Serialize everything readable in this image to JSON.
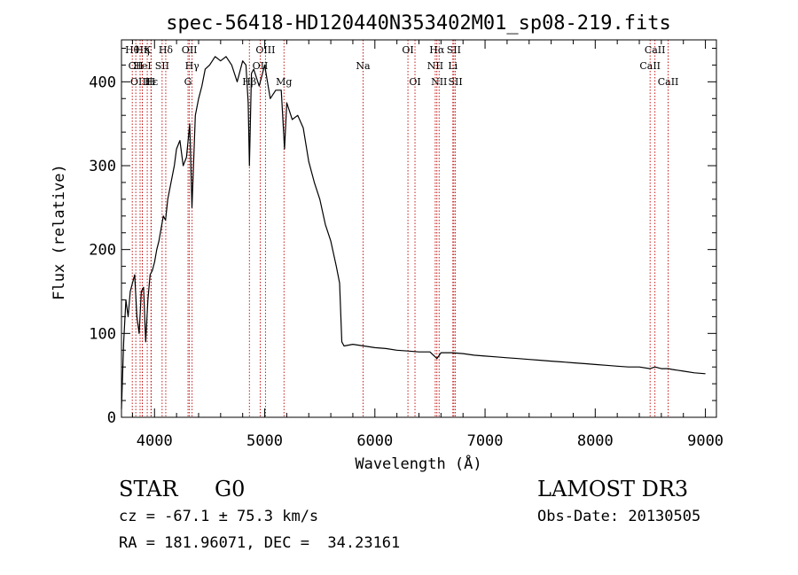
{
  "chart_data": {
    "type": "line",
    "title": "spec-56418-HD120440N353402M01_sp08-219.fits",
    "xlabel": "Wavelength (Å)",
    "ylabel": "Flux (relative)",
    "xlim": [
      3700,
      9100
    ],
    "ylim": [
      0,
      450
    ],
    "xticks": [
      4000,
      5000,
      6000,
      7000,
      8000,
      9000
    ],
    "yticks": [
      0,
      100,
      200,
      300,
      400
    ],
    "line_color": "#000000",
    "marker_color": "#c00000",
    "series": [
      {
        "name": "flux",
        "x": [
          3700,
          3720,
          3740,
          3760,
          3780,
          3800,
          3820,
          3840,
          3860,
          3880,
          3900,
          3920,
          3940,
          3960,
          3980,
          4000,
          4020,
          4040,
          4060,
          4080,
          4100,
          4120,
          4150,
          4180,
          4200,
          4230,
          4260,
          4290,
          4320,
          4340,
          4370,
          4400,
          4430,
          4460,
          4500,
          4550,
          4600,
          4650,
          4700,
          4750,
          4800,
          4830,
          4850,
          4861,
          4880,
          4900,
          4950,
          5000,
          5050,
          5100,
          5150,
          5180,
          5200,
          5250,
          5300,
          5350,
          5400,
          5450,
          5500,
          5550,
          5600,
          5650,
          5680,
          5700,
          5720,
          5800,
          5900,
          6000,
          6100,
          6200,
          6300,
          6400,
          6500,
          6563,
          6600,
          6700,
          6800,
          6900,
          7000,
          7100,
          7200,
          7300,
          7400,
          7500,
          7600,
          7700,
          7800,
          7900,
          8000,
          8100,
          8200,
          8300,
          8400,
          8498,
          8542,
          8600,
          8662,
          8700,
          8800,
          8900,
          9000
        ],
        "y": [
          10,
          90,
          140,
          120,
          150,
          160,
          170,
          120,
          100,
          150,
          155,
          90,
          140,
          170,
          175,
          185,
          200,
          210,
          225,
          240,
          235,
          260,
          280,
          300,
          320,
          330,
          300,
          310,
          350,
          250,
          360,
          380,
          395,
          415,
          420,
          430,
          425,
          430,
          420,
          400,
          425,
          420,
          375,
          300,
          410,
          415,
          395,
          420,
          380,
          390,
          390,
          320,
          375,
          355,
          360,
          345,
          305,
          280,
          260,
          230,
          210,
          180,
          160,
          90,
          85,
          87,
          85,
          83,
          82,
          80,
          79,
          78,
          78,
          70,
          77,
          77,
          76,
          74,
          73,
          72,
          71,
          70,
          69,
          68,
          67,
          66,
          65,
          64,
          63,
          62,
          61,
          60,
          60,
          58,
          60,
          58,
          58,
          57,
          55,
          53,
          52
        ]
      }
    ],
    "lines": [
      {
        "name": "Hθ",
        "x": 3798,
        "row": 0
      },
      {
        "name": "CII",
        "x": 3830,
        "row": 1
      },
      {
        "name": "OIII",
        "x": 3869,
        "row": 2
      },
      {
        "name": "Hη",
        "x": 3889,
        "row": 0
      },
      {
        "name": "HeI",
        "x": 3889,
        "row": 1
      },
      {
        "name": "Hε",
        "x": 3970,
        "row": 2
      },
      {
        "name": "K",
        "x": 3934,
        "row": 0
      },
      {
        "name": "SII",
        "x": 4069,
        "row": 1
      },
      {
        "name": "H",
        "x": 3968,
        "row": 2
      },
      {
        "name": "Hδ",
        "x": 4102,
        "row": 0
      },
      {
        "name": "OII",
        "x": 4317,
        "row": 0
      },
      {
        "name": "Hγ",
        "x": 4341,
        "row": 1
      },
      {
        "name": "G",
        "x": 4304,
        "row": 2
      },
      {
        "name": "OIII",
        "x": 5007,
        "row": 0
      },
      {
        "name": "OII",
        "x": 4959,
        "row": 1
      },
      {
        "name": "Hβ",
        "x": 4861,
        "row": 2
      },
      {
        "name": "Mg",
        "x": 5175,
        "row": 2
      },
      {
        "name": "Na",
        "x": 5893,
        "row": 1
      },
      {
        "name": "OI",
        "x": 6300,
        "row": 0
      },
      {
        "name": "OI",
        "x": 6364,
        "row": 2
      },
      {
        "name": "Hα",
        "x": 6563,
        "row": 0
      },
      {
        "name": "NII",
        "x": 6548,
        "row": 1
      },
      {
        "name": "NII",
        "x": 6583,
        "row": 2
      },
      {
        "name": "SII",
        "x": 6717,
        "row": 0
      },
      {
        "name": "Li",
        "x": 6708,
        "row": 1
      },
      {
        "name": "SII",
        "x": 6731,
        "row": 2
      },
      {
        "name": "CaII",
        "x": 8542,
        "row": 0
      },
      {
        "name": "CaII",
        "x": 8498,
        "row": 1
      },
      {
        "name": "CaII",
        "x": 8662,
        "row": 2
      }
    ]
  },
  "info": {
    "object_class": "STAR",
    "subclass": "G0",
    "survey": "LAMOST DR3",
    "redshift": "cz = -67.1 ± 75.3 km/s",
    "obs_date": "Obs-Date: 20130505",
    "coords": "RA = 181.96071, DEC =  34.23161"
  }
}
